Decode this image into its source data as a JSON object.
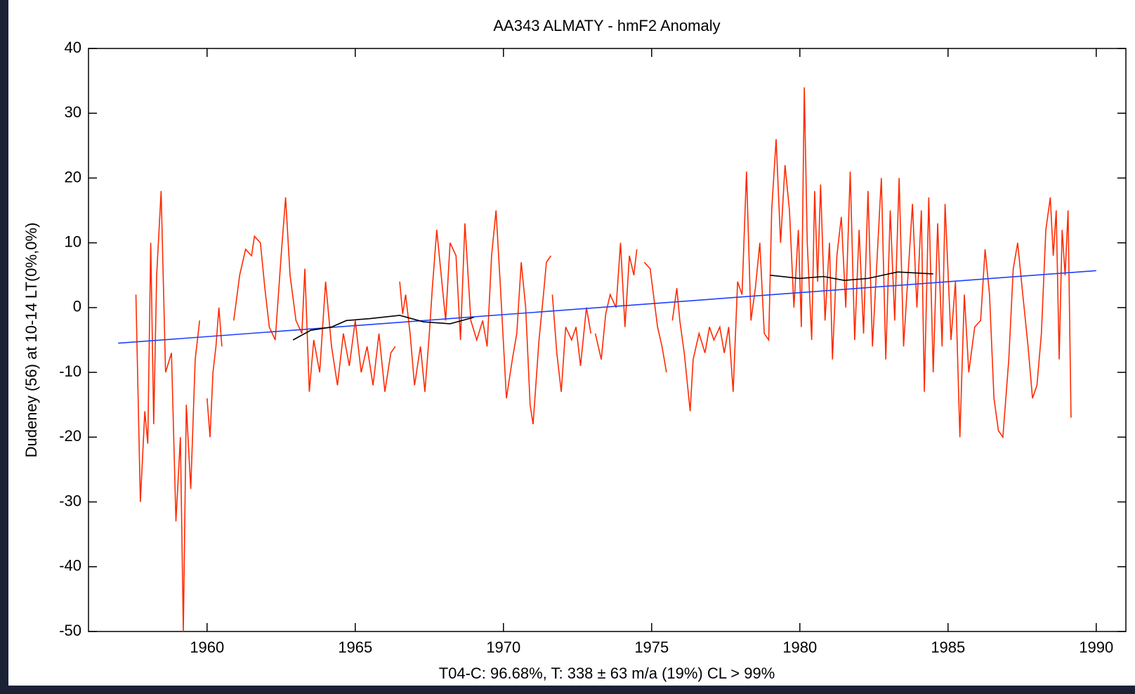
{
  "chart_data": {
    "type": "line",
    "title": "AA343 ALMATY - hmF2 Anomaly",
    "ylabel": "Dudeney (56) at 10-14 LT(0%,0%)",
    "xlabel": "T04-C: 96.68%, T: 338  ± 63 m/a (19%) CL > 99%",
    "xlim": [
      1956,
      1991
    ],
    "xticks": [
      1960,
      1965,
      1970,
      1975,
      1980,
      1985,
      1990
    ],
    "ylim": [
      -50,
      40
    ],
    "yticks": [
      -50,
      -40,
      -30,
      -20,
      -10,
      0,
      10,
      20,
      30,
      40
    ],
    "series": [
      {
        "color": "#ff2a00",
        "x": [
          1957.6,
          1957.75,
          1957.9,
          1958.0,
          1958.1,
          1958.2,
          1958.3,
          1958.45,
          1958.6,
          1958.8,
          1958.95,
          1959.1,
          1959.2,
          1959.3,
          1959.45,
          1959.6,
          1959.75,
          1959.85,
          1960.0,
          1960.1,
          1960.2,
          1960.3,
          1960.4,
          1960.5,
          1960.7,
          1960.9,
          1961.1,
          1961.3,
          1961.5,
          1961.6,
          1961.8,
          1961.95,
          1962.1,
          1962.3,
          1962.5,
          1962.65,
          1962.8,
          1963.0,
          1963.2,
          1963.3,
          1963.45,
          1963.6,
          1963.8,
          1964.0,
          1964.2,
          1964.4,
          1964.6,
          1964.8,
          1965.0,
          1965.2,
          1965.4,
          1965.6,
          1965.8,
          1966.0,
          1966.2,
          1966.35,
          1966.42,
          1966.5,
          1966.6,
          1966.7,
          1966.85,
          1967.0,
          1967.2,
          1967.35,
          1967.5,
          1967.6,
          1967.75,
          1967.9,
          1968.05,
          1968.2,
          1968.4,
          1968.55,
          1968.7,
          1968.9,
          1969.1,
          1969.3,
          1969.45,
          1969.6,
          1969.75,
          1969.9,
          1970.1,
          1970.3,
          1970.45,
          1970.6,
          1970.75,
          1970.9,
          1971.0,
          1971.2,
          1971.35,
          1971.45,
          1971.6,
          1971.62,
          1971.65,
          1971.8,
          1971.95,
          1972.1,
          1972.3,
          1972.45,
          1972.6,
          1972.8,
          1972.95,
          1973.02,
          1973.1,
          1973.3,
          1973.45,
          1973.6,
          1973.8,
          1973.95,
          1974.1,
          1974.25,
          1974.4,
          1974.5,
          1974.6,
          1974.75,
          1974.95,
          1975.2,
          1975.35,
          1975.5,
          1975.6,
          1975.7,
          1975.85,
          1975.95,
          1976.1,
          1976.3,
          1976.4,
          1976.6,
          1976.8,
          1976.95,
          1977.1,
          1977.3,
          1977.45,
          1977.6,
          1977.75,
          1977.9,
          1978.05,
          1978.2,
          1978.35,
          1978.5,
          1978.65,
          1978.8,
          1978.95,
          1979.05,
          1979.2,
          1979.35,
          1979.5,
          1979.65,
          1979.8,
          1979.95,
          1980.05,
          1980.15,
          1980.25,
          1980.4,
          1980.5,
          1980.6,
          1980.7,
          1980.85,
          1981.0,
          1981.1,
          1981.25,
          1981.4,
          1981.55,
          1981.7,
          1981.85,
          1982.0,
          1982.15,
          1982.3,
          1982.45,
          1982.6,
          1982.75,
          1982.9,
          1983.05,
          1983.2,
          1983.35,
          1983.5,
          1983.65,
          1983.8,
          1983.95,
          1984.1,
          1984.2,
          1984.35,
          1984.5,
          1984.65,
          1984.8,
          1984.9,
          1985.1,
          1985.25,
          1985.4,
          1985.55,
          1985.7,
          1985.9,
          1986.1,
          1986.25,
          1986.4,
          1986.55,
          1986.7,
          1986.85,
          1987.05,
          1987.2,
          1987.35,
          1987.5,
          1987.7,
          1987.85,
          1988.0,
          1988.15,
          1988.3,
          1988.45,
          1988.55,
          1988.65,
          1988.75,
          1988.85,
          1988.95,
          1989.05,
          1989.15
        ],
        "values": [
          2,
          -30,
          -16,
          -21,
          10,
          -18,
          5,
          18,
          -10,
          -7,
          -33,
          -20,
          -50,
          -15,
          -28,
          -8,
          -2,
          null,
          -14,
          -20,
          -10,
          -6,
          0,
          -6,
          null,
          -2,
          5,
          9,
          8,
          11,
          10,
          3,
          -3,
          -5,
          8,
          17,
          5,
          -2,
          -4,
          6,
          -13,
          -5,
          -10,
          4,
          -6,
          -12,
          -4,
          -9,
          -2,
          -10,
          -6,
          -12,
          -4,
          -13,
          -7,
          -6,
          null,
          4,
          -1,
          2,
          -4,
          -12,
          -6,
          -13,
          -4,
          3,
          12,
          5,
          -2,
          10,
          8,
          -5,
          13,
          -2,
          -5,
          -2,
          -6,
          8,
          15,
          3,
          -14,
          -8,
          -4,
          7,
          0,
          -15,
          -18,
          -5,
          2,
          7,
          8,
          null,
          2,
          -7,
          -13,
          -3,
          -5,
          -3,
          -9,
          0,
          -4,
          null,
          -4,
          -8,
          -1,
          2,
          0,
          10,
          -3,
          8,
          5,
          9,
          null,
          7,
          6,
          -3,
          -6,
          -10,
          null,
          -2,
          3,
          -2,
          -7,
          -16,
          -8,
          -4,
          -7,
          -3,
          -5,
          -3,
          -7,
          -3,
          -13,
          4,
          2,
          21,
          -2,
          3,
          10,
          -4,
          -5,
          15,
          26,
          10,
          22,
          15,
          0,
          12,
          -3,
          34,
          10,
          -5,
          18,
          4,
          19,
          -2,
          10,
          -8,
          8,
          14,
          0,
          21,
          -5,
          12,
          -4,
          18,
          -6,
          7,
          20,
          -8,
          15,
          -2,
          20,
          -6,
          5,
          16,
          0,
          15,
          -13,
          17,
          -10,
          13,
          -6,
          16,
          -5,
          4,
          -20,
          2,
          -10,
          -3,
          -2,
          9,
          2,
          -14,
          -19,
          -20,
          -8,
          6,
          10,
          3,
          -6,
          -14,
          -12,
          -4,
          12,
          17,
          8,
          15,
          -8,
          12,
          5,
          15,
          -17
        ]
      },
      {
        "color": "#1f3fff",
        "x": [
          1957,
          1990
        ],
        "values": [
          -5.5,
          5.7
        ]
      },
      {
        "color": "#000000",
        "x": [
          1962.9,
          1963.5,
          1964.2,
          1964.7,
          1965.5,
          1966.5,
          1967.3,
          1968.2,
          1969.0,
          1970.0,
          1979.0,
          1980.0,
          1980.8,
          1981.5,
          1982.3,
          1983.3,
          1984.5
        ],
        "values": [
          -5,
          -3.5,
          -3,
          -2,
          -1.7,
          -1.2,
          -2.2,
          -2.5,
          -1.5,
          null,
          5,
          4.5,
          4.8,
          4.2,
          4.5,
          5.5,
          5.2
        ]
      }
    ]
  }
}
